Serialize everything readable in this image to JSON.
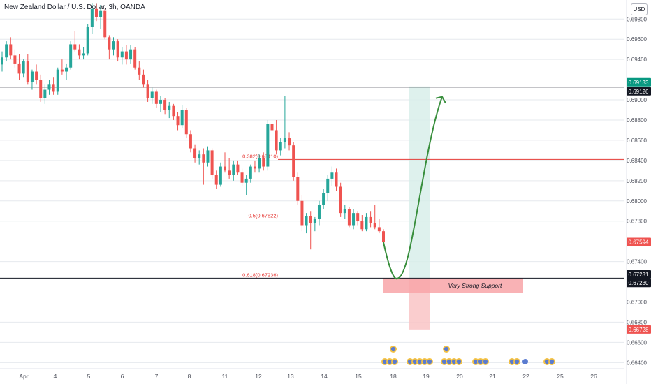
{
  "header": {
    "title": "New Zealand Dollar / U.S. Dollar, 3h, OANDA",
    "currency_button": "USD"
  },
  "colors": {
    "bullish": "#26a69a",
    "bearish": "#ef5350",
    "fib_line": "#e53935",
    "support_zone": "#f8a5a8",
    "target_zone": "#d6eee8",
    "stop_zone": "#f9c4c6",
    "projection": "#388e3c",
    "grid": "#e6e9ee",
    "axis_text": "#50535e"
  },
  "chart_data": {
    "type": "candlestick",
    "title": "New Zealand Dollar / U.S. Dollar, 3h, OANDA",
    "ylim": [
      0.6634,
      0.6994
    ],
    "y_ticks": [
      {
        "value": 0.698,
        "label": "0.69800"
      },
      {
        "value": 0.696,
        "label": "0.69600"
      },
      {
        "value": 0.694,
        "label": "0.69400"
      },
      {
        "value": 0.69,
        "label": "0.69000"
      },
      {
        "value": 0.688,
        "label": "0.68800"
      },
      {
        "value": 0.686,
        "label": "0.68600"
      },
      {
        "value": 0.684,
        "label": "0.68400"
      },
      {
        "value": 0.682,
        "label": "0.68200"
      },
      {
        "value": 0.68,
        "label": "0.68000"
      },
      {
        "value": 0.678,
        "label": "0.67800"
      },
      {
        "value": 0.674,
        "label": "0.67400"
      },
      {
        "value": 0.67,
        "label": "0.67000"
      },
      {
        "value": 0.668,
        "label": "0.66800"
      },
      {
        "value": 0.666,
        "label": "0.66600"
      },
      {
        "value": 0.664,
        "label": "0.66400"
      }
    ],
    "x_ticks": [
      {
        "day": 3,
        "label": "Apr"
      },
      {
        "day": 4,
        "label": "4"
      },
      {
        "day": 5,
        "label": "5"
      },
      {
        "day": 6,
        "label": "6"
      },
      {
        "day": 7,
        "label": "7"
      },
      {
        "day": 8,
        "label": "8"
      },
      {
        "day": 11,
        "label": "11"
      },
      {
        "day": 12,
        "label": "12"
      },
      {
        "day": 13,
        "label": "13"
      },
      {
        "day": 14,
        "label": "14"
      },
      {
        "day": 15,
        "label": "15"
      },
      {
        "day": 18,
        "label": "18"
      },
      {
        "day": 19,
        "label": "19"
      },
      {
        "day": 20,
        "label": "20"
      },
      {
        "day": 21,
        "label": "21"
      },
      {
        "day": 22,
        "label": "22"
      },
      {
        "day": 25,
        "label": "25"
      },
      {
        "day": 26,
        "label": "26"
      }
    ],
    "price_labels": [
      {
        "value": 0.69133,
        "label": "0.69133",
        "color": "#089981"
      },
      {
        "value": 0.69126,
        "label": "0.69126",
        "color": "#131722"
      },
      {
        "value": 0.67594,
        "label": "0.67594",
        "color": "#ef5350"
      },
      {
        "value": 0.67231,
        "label": "0.67231",
        "color": "#131722"
      },
      {
        "value": 0.6723,
        "label": "0.67230",
        "color": "#131722"
      },
      {
        "value": 0.66728,
        "label": "0.66728",
        "color": "#ef5350"
      }
    ],
    "horizontal_levels": [
      {
        "value": 0.69126,
        "color": "#131722",
        "kind": "resistance"
      },
      {
        "value": 0.6841,
        "color": "#e53935",
        "kind": "fib",
        "label": "0.382(0.68410)"
      },
      {
        "value": 0.67822,
        "color": "#e53935",
        "kind": "fib",
        "label": "0.5(0.67822)"
      },
      {
        "value": 0.67236,
        "color": "#131722",
        "kind": "fib",
        "label": "0.618(0.67236)"
      }
    ],
    "support_zone": {
      "top": 0.67236,
      "bottom": 0.6709,
      "label": "Very Strong Support"
    },
    "target_zone": {
      "top": 0.69133,
      "bottom": 0.67231
    },
    "stop_zone": {
      "top": 0.67231,
      "bottom": 0.66728
    },
    "candles": [
      [
        0.6935,
        0.6948,
        0.6928,
        0.6942
      ],
      [
        0.6942,
        0.6958,
        0.6938,
        0.6955
      ],
      [
        0.6955,
        0.6962,
        0.694,
        0.6944
      ],
      [
        0.6944,
        0.695,
        0.6932,
        0.6936
      ],
      [
        0.6936,
        0.6945,
        0.692,
        0.6926
      ],
      [
        0.6926,
        0.694,
        0.6922,
        0.6938
      ],
      [
        0.6938,
        0.6945,
        0.6915,
        0.6918
      ],
      [
        0.6918,
        0.693,
        0.691,
        0.6928
      ],
      [
        0.6928,
        0.6935,
        0.6915,
        0.692
      ],
      [
        0.692,
        0.6925,
        0.6898,
        0.6902
      ],
      [
        0.6902,
        0.6915,
        0.6896,
        0.691
      ],
      [
        0.691,
        0.692,
        0.6905,
        0.6915
      ],
      [
        0.6915,
        0.6922,
        0.6905,
        0.6908
      ],
      [
        0.6908,
        0.6932,
        0.6905,
        0.693
      ],
      [
        0.693,
        0.694,
        0.6925,
        0.6928
      ],
      [
        0.6928,
        0.6936,
        0.692,
        0.6932
      ],
      [
        0.6932,
        0.6958,
        0.693,
        0.6955
      ],
      [
        0.6955,
        0.6968,
        0.6948,
        0.695
      ],
      [
        0.695,
        0.6955,
        0.694,
        0.6944
      ],
      [
        0.6944,
        0.6952,
        0.694,
        0.6946
      ],
      [
        0.6946,
        0.6975,
        0.6944,
        0.6972
      ],
      [
        0.6972,
        0.6996,
        0.6965,
        0.699
      ],
      [
        0.699,
        0.6995,
        0.6978,
        0.6982
      ],
      [
        0.6982,
        0.6994,
        0.697,
        0.6988
      ],
      [
        0.6988,
        0.699,
        0.696,
        0.6962
      ],
      [
        0.6962,
        0.6964,
        0.694,
        0.695
      ],
      [
        0.695,
        0.6962,
        0.6944,
        0.6958
      ],
      [
        0.6958,
        0.696,
        0.6938,
        0.6942
      ],
      [
        0.6942,
        0.6952,
        0.6935,
        0.6948
      ],
      [
        0.6948,
        0.6954,
        0.6935,
        0.694
      ],
      [
        0.694,
        0.6954,
        0.6936,
        0.695
      ],
      [
        0.695,
        0.6952,
        0.693,
        0.6932
      ],
      [
        0.6932,
        0.6938,
        0.692,
        0.6925
      ],
      [
        0.6925,
        0.693,
        0.6912,
        0.6915
      ],
      [
        0.6915,
        0.692,
        0.6898,
        0.6902
      ],
      [
        0.6902,
        0.6912,
        0.6896,
        0.6908
      ],
      [
        0.6908,
        0.691,
        0.6892,
        0.6896
      ],
      [
        0.6896,
        0.6904,
        0.6888,
        0.69
      ],
      [
        0.69,
        0.6902,
        0.6886,
        0.689
      ],
      [
        0.689,
        0.6898,
        0.6882,
        0.6894
      ],
      [
        0.6894,
        0.6896,
        0.688,
        0.6884
      ],
      [
        0.6884,
        0.6888,
        0.687,
        0.6875
      ],
      [
        0.6875,
        0.6895,
        0.6872,
        0.689
      ],
      [
        0.689,
        0.6892,
        0.6862,
        0.6866
      ],
      [
        0.6866,
        0.687,
        0.6848,
        0.6852
      ],
      [
        0.6852,
        0.6856,
        0.6838,
        0.6842
      ],
      [
        0.6842,
        0.685,
        0.6836,
        0.6846
      ],
      [
        0.6846,
        0.6852,
        0.6816,
        0.6838
      ],
      [
        0.6838,
        0.6854,
        0.6834,
        0.685
      ],
      [
        0.685,
        0.6852,
        0.6822,
        0.6826
      ],
      [
        0.6826,
        0.683,
        0.6812,
        0.6816
      ],
      [
        0.6816,
        0.6838,
        0.6814,
        0.6834
      ],
      [
        0.6834,
        0.6848,
        0.6828,
        0.683
      ],
      [
        0.683,
        0.6842,
        0.6822,
        0.6826
      ],
      [
        0.6826,
        0.684,
        0.682,
        0.6836
      ],
      [
        0.6836,
        0.684,
        0.6826,
        0.6828
      ],
      [
        0.6828,
        0.6832,
        0.6815,
        0.6818
      ],
      [
        0.6818,
        0.6826,
        0.6806,
        0.6822
      ],
      [
        0.6822,
        0.6836,
        0.6818,
        0.6834
      ],
      [
        0.6834,
        0.684,
        0.6828,
        0.6832
      ],
      [
        0.6832,
        0.6846,
        0.6828,
        0.6842
      ],
      [
        0.6842,
        0.6848,
        0.683,
        0.6834
      ],
      [
        0.6834,
        0.688,
        0.683,
        0.6876
      ],
      [
        0.6876,
        0.6888,
        0.6865,
        0.687
      ],
      [
        0.687,
        0.688,
        0.6846,
        0.685
      ],
      [
        0.685,
        0.6862,
        0.6845,
        0.6858
      ],
      [
        0.6858,
        0.6904,
        0.6852,
        0.6862
      ],
      [
        0.6862,
        0.6868,
        0.685,
        0.6855
      ],
      [
        0.6855,
        0.6858,
        0.682,
        0.6824
      ],
      [
        0.6824,
        0.6828,
        0.6796,
        0.68
      ],
      [
        0.68,
        0.6806,
        0.677,
        0.6776
      ],
      [
        0.6776,
        0.6788,
        0.6768,
        0.6785
      ],
      [
        0.6785,
        0.679,
        0.6752,
        0.6778
      ],
      [
        0.6778,
        0.6784,
        0.677,
        0.6782
      ],
      [
        0.6782,
        0.68,
        0.6776,
        0.6796
      ],
      [
        0.6796,
        0.6812,
        0.6792,
        0.6808
      ],
      [
        0.6808,
        0.6826,
        0.68,
        0.6822
      ],
      [
        0.6822,
        0.6834,
        0.6815,
        0.6828
      ],
      [
        0.6828,
        0.6832,
        0.681,
        0.6814
      ],
      [
        0.6814,
        0.6818,
        0.6784,
        0.6788
      ],
      [
        0.6788,
        0.6796,
        0.6782,
        0.6792
      ],
      [
        0.6792,
        0.6794,
        0.6774,
        0.6776
      ],
      [
        0.6776,
        0.6792,
        0.6772,
        0.6788
      ],
      [
        0.6788,
        0.679,
        0.6776,
        0.678
      ],
      [
        0.678,
        0.6786,
        0.677,
        0.6772
      ],
      [
        0.6772,
        0.6788,
        0.677,
        0.6784
      ],
      [
        0.6784,
        0.679,
        0.6774,
        0.6778
      ],
      [
        0.6778,
        0.6796,
        0.6772,
        0.6774
      ],
      [
        0.6774,
        0.6782,
        0.6768,
        0.677
      ],
      [
        0.677,
        0.6772,
        0.6757,
        0.6759
      ]
    ],
    "event_icons": {
      "top_row": [
        0.5,
        0.5
      ],
      "bottom_row": [
        3,
        5,
        4,
        3,
        2,
        2
      ]
    }
  }
}
